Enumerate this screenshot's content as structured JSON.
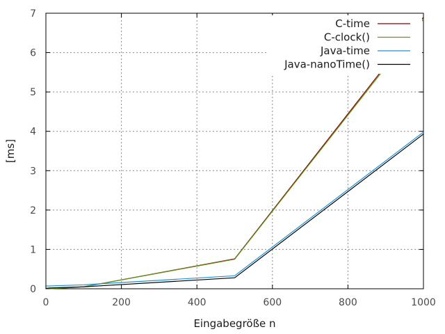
{
  "chart_data": {
    "type": "line",
    "title": "",
    "xlabel": "Eingabegröße n",
    "ylabel": "[ms]",
    "xlim": [
      0,
      1000
    ],
    "ylim": [
      0,
      7
    ],
    "xticks": [
      "0",
      "200",
      "400",
      "600",
      "800",
      "1000"
    ],
    "yticks": [
      "0",
      "1",
      "2",
      "3",
      "4",
      "5",
      "6",
      "7"
    ],
    "grid": true,
    "legend_position": "top-right",
    "x": [
      1,
      10,
      100,
      500,
      1000
    ],
    "series": [
      {
        "name": "C-time",
        "color": "#8b0000",
        "values": [
          0.0,
          0.0,
          0.05,
          0.76,
          6.9
        ]
      },
      {
        "name": "C-clock()",
        "color": "#5a9a1a",
        "values": [
          0.0,
          0.0,
          0.05,
          0.75,
          6.85
        ]
      },
      {
        "name": "Java-time",
        "color": "#1e90d8",
        "values": [
          0.07,
          0.07,
          0.1,
          0.33,
          3.98
        ]
      },
      {
        "name": "Java-nanoTime()",
        "color": "#000000",
        "values": [
          0.01,
          0.02,
          0.05,
          0.28,
          3.93
        ]
      }
    ]
  }
}
